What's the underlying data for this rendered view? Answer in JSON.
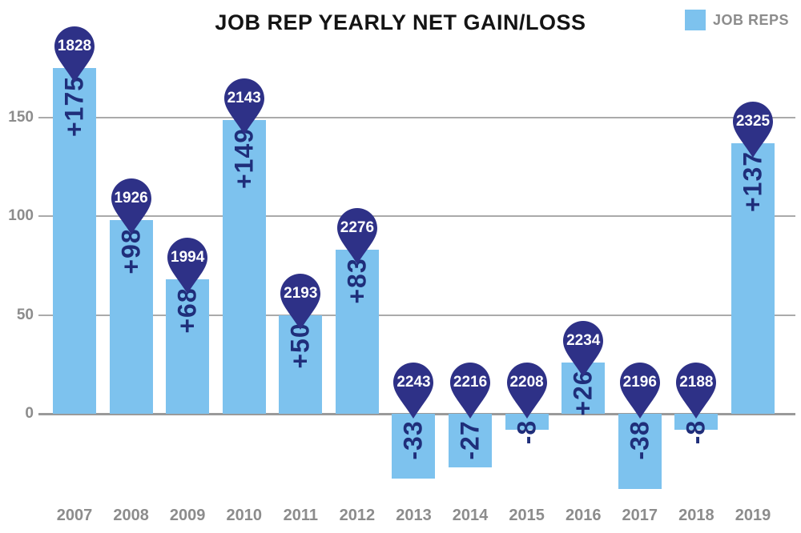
{
  "title": "JOB REP YEARLY NET GAIN/LOSS",
  "legend": {
    "label": "JOB REPS"
  },
  "colors": {
    "bar": "#7dc2ee",
    "pin": "#2e3187",
    "pin_text": "#ffffff",
    "net_text": "#1f2e7a",
    "grid": "#aaaaaa",
    "zero_line": "#9a9a9a",
    "axis_text": "#8c8c8c",
    "title_text": "#141414"
  },
  "chart_data": {
    "type": "bar",
    "title": "JOB REP YEARLY NET GAIN/LOSS",
    "categories": [
      "2007",
      "2008",
      "2009",
      "2010",
      "2011",
      "2012",
      "2013",
      "2014",
      "2015",
      "2016",
      "2017",
      "2018",
      "2019"
    ],
    "series": [
      {
        "name": "JOB REPS",
        "values": [
          175,
          98,
          68,
          149,
          50,
          83,
          -33,
          -27,
          -8,
          26,
          -38,
          -8,
          137
        ]
      }
    ],
    "net_labels": [
      "+175",
      "+98",
      "+68",
      "+149",
      "+50",
      "+83",
      "-33",
      "-27",
      "-8",
      "+26",
      "-38",
      "-8",
      "+137"
    ],
    "totals": [
      "1828",
      "1926",
      "1994",
      "2143",
      "2193",
      "2276",
      "2243",
      "2216",
      "2208",
      "2234",
      "2196",
      "2188",
      "2325"
    ],
    "yticks": [
      0,
      50,
      100,
      150
    ],
    "ylim": [
      -60,
      190
    ],
    "grid": true,
    "legend_position": "top-right",
    "xlabel": "",
    "ylabel": ""
  }
}
